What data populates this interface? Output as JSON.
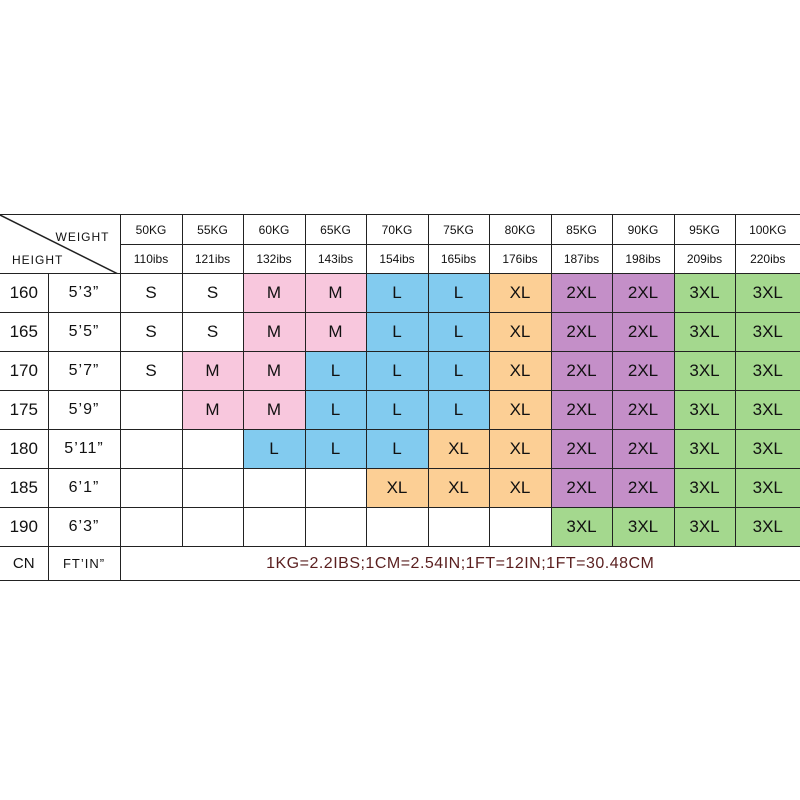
{
  "header": {
    "weight_label": "WEIGHT",
    "height_label": "HEIGHT",
    "weights_kg": [
      "50KG",
      "55KG",
      "60KG",
      "65KG",
      "70KG",
      "75KG",
      "80KG",
      "85KG",
      "90KG",
      "95KG",
      "100KG"
    ],
    "weights_lbs": [
      "110ibs",
      "121ibs",
      "132ibs",
      "143ibs",
      "154ibs",
      "165ibs",
      "176ibs",
      "187ibs",
      "198ibs",
      "209ibs",
      "220ibs"
    ]
  },
  "rows": [
    {
      "cm": "160",
      "ft": "5’3”",
      "sizes": [
        "S",
        "S",
        "M",
        "M",
        "L",
        "L",
        "XL",
        "2XL",
        "2XL",
        "3XL",
        "3XL"
      ]
    },
    {
      "cm": "165",
      "ft": "5’5”",
      "sizes": [
        "S",
        "S",
        "M",
        "M",
        "L",
        "L",
        "XL",
        "2XL",
        "2XL",
        "3XL",
        "3XL"
      ]
    },
    {
      "cm": "170",
      "ft": "5’7”",
      "sizes": [
        "S",
        "M",
        "M",
        "L",
        "L",
        "L",
        "XL",
        "2XL",
        "2XL",
        "3XL",
        "3XL"
      ]
    },
    {
      "cm": "175",
      "ft": "5’9”",
      "sizes": [
        "",
        "M",
        "M",
        "L",
        "L",
        "L",
        "XL",
        "2XL",
        "2XL",
        "3XL",
        "3XL"
      ]
    },
    {
      "cm": "180",
      "ft": "5’11”",
      "sizes": [
        "",
        "",
        "L",
        "L",
        "L",
        "XL",
        "XL",
        "2XL",
        "2XL",
        "3XL",
        "3XL"
      ]
    },
    {
      "cm": "185",
      "ft": "6’1”",
      "sizes": [
        "",
        "",
        "",
        "",
        "XL",
        "XL",
        "XL",
        "2XL",
        "2XL",
        "3XL",
        "3XL"
      ]
    },
    {
      "cm": "190",
      "ft": "6’3”",
      "sizes": [
        "",
        "",
        "",
        "",
        "",
        "",
        "",
        "3XL",
        "3XL",
        "3XL",
        "3XL"
      ]
    }
  ],
  "footer": {
    "cn_label": "CN",
    "ft_label": "FT’IN”",
    "note": "1KG=2.2IBS;1CM=2.54IN;1FT=12IN;1FT=30.48CM"
  },
  "size_colors": {
    "S": "#ffffff",
    "M": "#f8c7dd",
    "L": "#82cbef",
    "XL": "#fccf95",
    "2XL": "#c48fc8",
    "3XL": "#a4d88e"
  }
}
